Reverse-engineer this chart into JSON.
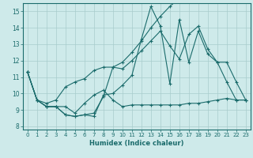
{
  "xlabel": "Humidex (Indice chaleur)",
  "xlim": [
    -0.5,
    23.5
  ],
  "ylim": [
    7.8,
    15.5
  ],
  "yticks": [
    8,
    9,
    10,
    11,
    12,
    13,
    14,
    15
  ],
  "xticks": [
    0,
    1,
    2,
    3,
    4,
    5,
    6,
    7,
    8,
    9,
    10,
    11,
    12,
    13,
    14,
    15,
    16,
    17,
    18,
    19,
    20,
    21,
    22,
    23
  ],
  "bg_color": "#ceeaea",
  "line_color": "#1a6b6b",
  "grid_color": "#a8cccc",
  "series": [
    [
      11.3,
      9.6,
      9.2,
      9.2,
      8.7,
      8.6,
      8.7,
      8.6,
      9.9,
      10.0,
      10.5,
      11.1,
      13.3,
      15.3,
      14.1,
      10.6,
      14.5,
      11.9,
      13.8,
      12.4,
      11.9,
      11.9,
      10.7,
      9.6
    ],
    [
      11.3,
      9.6,
      9.2,
      9.2,
      9.2,
      8.8,
      9.4,
      9.9,
      10.2,
      9.6,
      9.2,
      9.3,
      9.3,
      9.3,
      9.3,
      9.3,
      9.3,
      9.4,
      9.4,
      9.5,
      9.6,
      9.7,
      9.6,
      9.6
    ],
    [
      11.3,
      9.6,
      9.4,
      9.6,
      10.4,
      10.7,
      10.9,
      11.4,
      11.6,
      11.6,
      11.9,
      12.5,
      13.2,
      14.0,
      14.7,
      15.3,
      15.8,
      null,
      null,
      null,
      null,
      null,
      null,
      null
    ],
    [
      11.3,
      9.6,
      9.2,
      9.2,
      8.7,
      8.6,
      8.7,
      8.8,
      9.8,
      11.6,
      11.5,
      12.0,
      12.6,
      13.2,
      13.8,
      12.9,
      12.1,
      13.6,
      14.1,
      12.7,
      11.9,
      10.7,
      9.6,
      9.6
    ]
  ]
}
